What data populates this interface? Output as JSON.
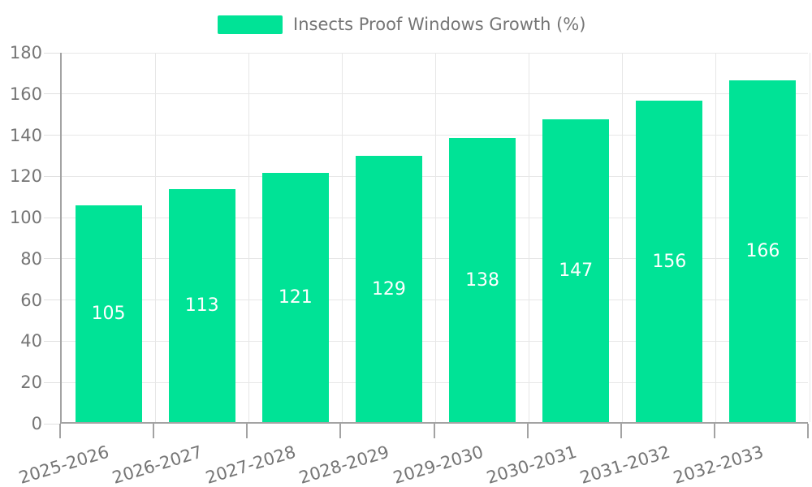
{
  "legend": {
    "label": "Insects Proof Windows Growth (%)",
    "swatch_color": "#00E396"
  },
  "chart_data": {
    "type": "bar",
    "title": "Insects Proof Windows Growth (%)",
    "categories": [
      "2025-2026",
      "2026-2027",
      "2027-2028",
      "2028-2029",
      "2029-2030",
      "2030-2031",
      "2031-2032",
      "2032-2033"
    ],
    "series": [
      {
        "name": "Insects Proof Windows Growth (%)",
        "values": [
          105,
          113,
          121,
          129,
          138,
          147,
          156,
          166
        ]
      }
    ],
    "data_labels": [
      "105",
      "113",
      "121",
      "129",
      "138",
      "147",
      "156",
      "166"
    ],
    "xlabel": "",
    "ylabel": "",
    "ylim": [
      0,
      180
    ],
    "ytick_step": 20,
    "yticks": [
      "0",
      "20",
      "40",
      "60",
      "80",
      "100",
      "120",
      "140",
      "160",
      "180"
    ],
    "grid": true,
    "legend_position": "top",
    "colors": {
      "bar": "#00E396",
      "grid": "#e7e7e7",
      "axis": "#a3a3a3",
      "tick_label": "#757575",
      "data_label": "#ffffff",
      "background": "#ffffff"
    }
  }
}
